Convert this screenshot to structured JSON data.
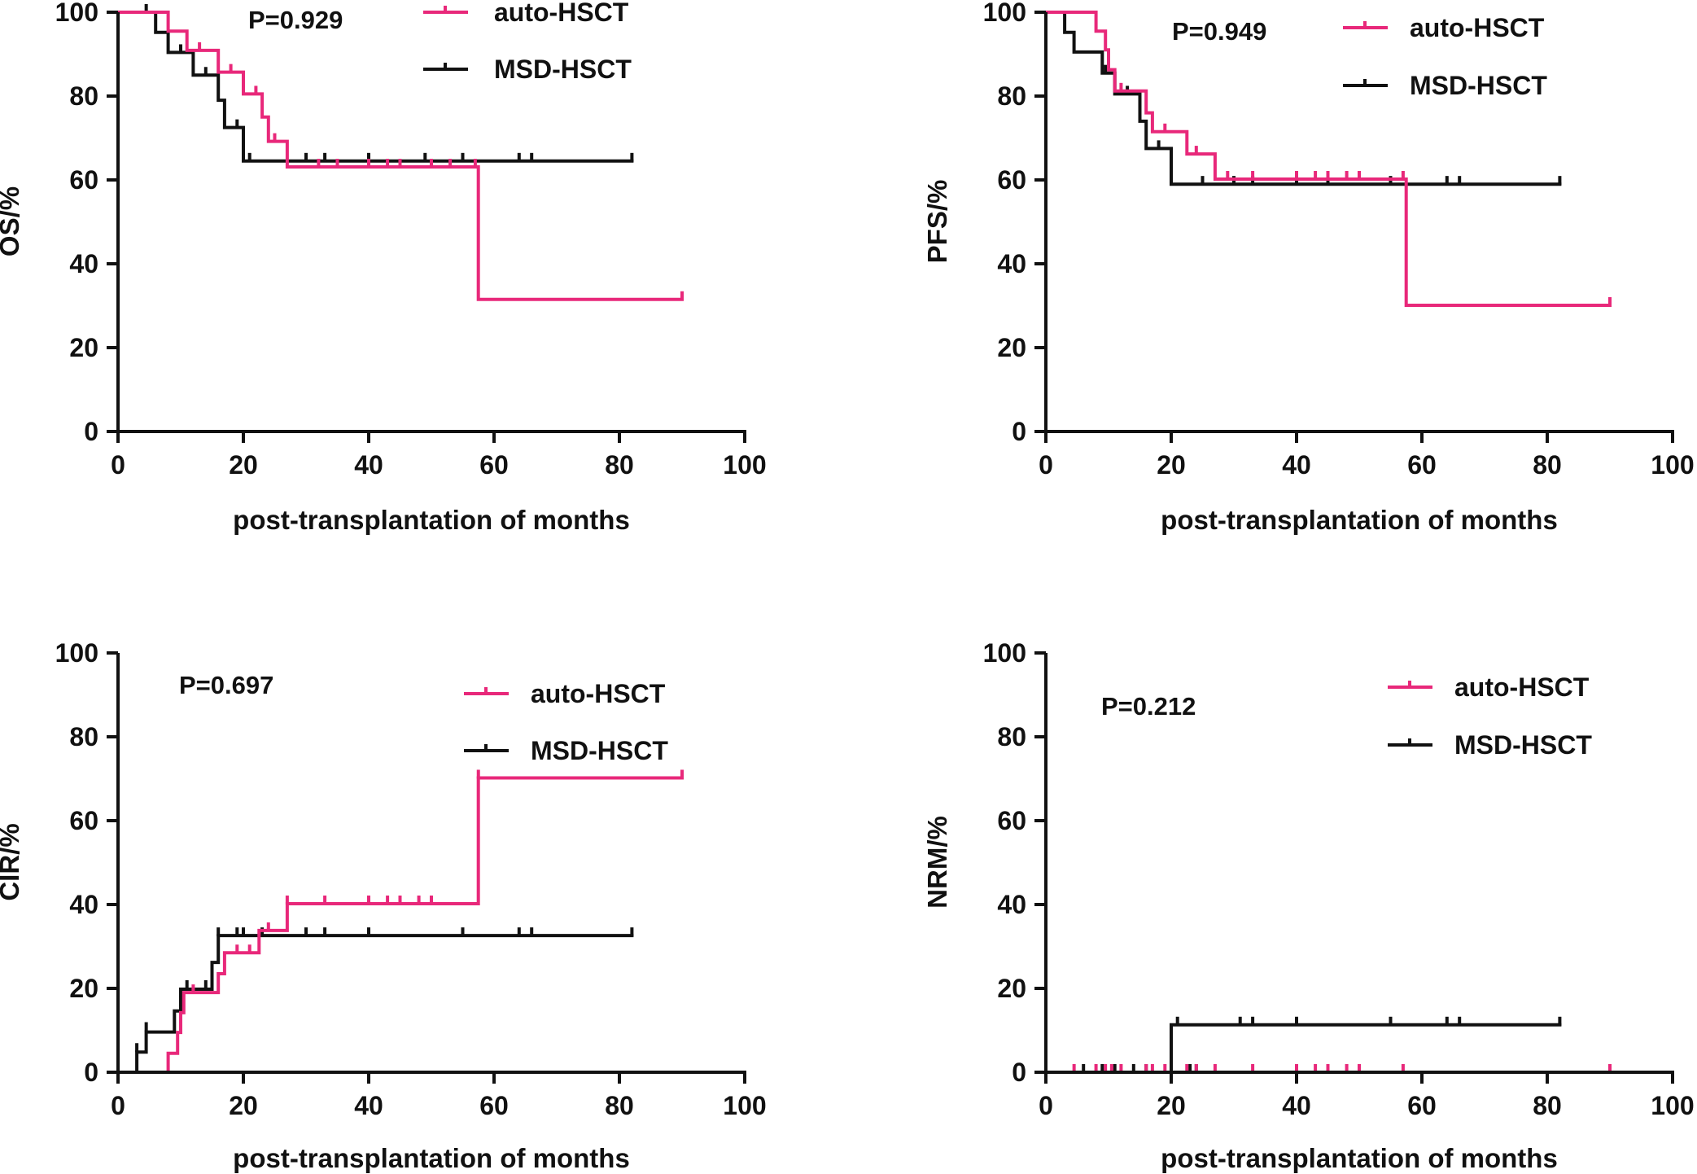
{
  "colors": {
    "auto": "#e8287a",
    "msd": "#111111",
    "axis": "#111111"
  },
  "chart_data": [
    {
      "type": "line",
      "subtype": "kaplan-meier",
      "id": "os",
      "ylabel": "OS/%",
      "xlabel": "post-transplantation of months",
      "p_value": "P=0.929",
      "xlim": [
        0,
        100
      ],
      "ylim": [
        0,
        100
      ],
      "x_ticks": [
        "0",
        "20",
        "40",
        "60",
        "80",
        "100"
      ],
      "y_ticks": [
        "0",
        "20",
        "40",
        "60",
        "80",
        "100"
      ],
      "legend": [
        "auto-HSCT",
        "MSD-HSCT"
      ],
      "series": [
        {
          "name": "auto-HSCT",
          "steps": [
            [
              0,
              100
            ],
            [
              8,
              100
            ],
            [
              8,
              95.5
            ],
            [
              11,
              95.5
            ],
            [
              11,
              90.9
            ],
            [
              16,
              90.9
            ],
            [
              16,
              85.7
            ],
            [
              20,
              85.7
            ],
            [
              20,
              80.5
            ],
            [
              23,
              80.5
            ],
            [
              23,
              75
            ],
            [
              24,
              75
            ],
            [
              24,
              69.2
            ],
            [
              27,
              69.2
            ],
            [
              27,
              63.1
            ],
            [
              57.5,
              63.1
            ],
            [
              57.5,
              31.5
            ],
            [
              90,
              31.5
            ]
          ],
          "censored": [
            [
              13,
              90.9
            ],
            [
              18,
              85.7
            ],
            [
              22,
              80.5
            ],
            [
              25,
              69.2
            ],
            [
              32,
              63.1
            ],
            [
              35,
              63.1
            ],
            [
              40,
              63.1
            ],
            [
              43,
              63.1
            ],
            [
              45,
              63.1
            ],
            [
              50,
              63.1
            ],
            [
              53,
              63.1
            ],
            [
              57,
              63.1
            ],
            [
              90,
              31.5
            ]
          ]
        },
        {
          "name": "MSD-HSCT",
          "steps": [
            [
              0,
              100
            ],
            [
              6,
              100
            ],
            [
              6,
              95.2
            ],
            [
              8,
              95.2
            ],
            [
              8,
              90.4
            ],
            [
              12,
              90.4
            ],
            [
              12,
              85
            ],
            [
              16,
              85
            ],
            [
              16,
              79
            ],
            [
              17,
              79
            ],
            [
              17,
              72.5
            ],
            [
              20,
              72.5
            ],
            [
              20,
              64.5
            ],
            [
              82,
              64.5
            ]
          ],
          "censored": [
            [
              4.5,
              100
            ],
            [
              10,
              90.4
            ],
            [
              14,
              85
            ],
            [
              19,
              72.5
            ],
            [
              21,
              64.5
            ],
            [
              30,
              64.5
            ],
            [
              33,
              64.5
            ],
            [
              40,
              64.5
            ],
            [
              49,
              64.5
            ],
            [
              55,
              64.5
            ],
            [
              64,
              64.5
            ],
            [
              66,
              64.5
            ],
            [
              82,
              64.5
            ]
          ]
        }
      ]
    },
    {
      "type": "line",
      "subtype": "kaplan-meier",
      "id": "pfs",
      "ylabel": "PFS/%",
      "xlabel": "post-transplantation of months",
      "p_value": "P=0.949",
      "xlim": [
        0,
        100
      ],
      "ylim": [
        0,
        100
      ],
      "x_ticks": [
        "0",
        "20",
        "40",
        "60",
        "80",
        "100"
      ],
      "y_ticks": [
        "0",
        "20",
        "40",
        "60",
        "80",
        "100"
      ],
      "legend": [
        "auto-HSCT",
        "MSD-HSCT"
      ],
      "series": [
        {
          "name": "auto-HSCT",
          "steps": [
            [
              0,
              100
            ],
            [
              8,
              100
            ],
            [
              8,
              95.5
            ],
            [
              9.5,
              95.5
            ],
            [
              9.5,
              91
            ],
            [
              10,
              91
            ],
            [
              10,
              86.3
            ],
            [
              11,
              86.3
            ],
            [
              11,
              81.2
            ],
            [
              16,
              81.2
            ],
            [
              16,
              76
            ],
            [
              17,
              76
            ],
            [
              17,
              71.5
            ],
            [
              22.5,
              71.5
            ],
            [
              22.5,
              66.2
            ],
            [
              27,
              66.2
            ],
            [
              27,
              60.2
            ],
            [
              57.5,
              60.2
            ],
            [
              57.5,
              30.1
            ],
            [
              90,
              30.1
            ]
          ],
          "censored": [
            [
              12,
              81.2
            ],
            [
              19,
              71.5
            ],
            [
              24,
              66.2
            ],
            [
              29,
              60.2
            ],
            [
              33,
              60.2
            ],
            [
              40,
              60.2
            ],
            [
              43,
              60.2
            ],
            [
              45,
              60.2
            ],
            [
              48,
              60.2
            ],
            [
              50,
              60.2
            ],
            [
              57,
              60.2
            ],
            [
              90,
              30.1
            ]
          ]
        },
        {
          "name": "MSD-HSCT",
          "steps": [
            [
              0,
              100
            ],
            [
              3,
              100
            ],
            [
              3,
              95.2
            ],
            [
              4.5,
              95.2
            ],
            [
              4.5,
              90.5
            ],
            [
              9,
              90.5
            ],
            [
              9,
              85.5
            ],
            [
              11,
              85.5
            ],
            [
              11,
              80.5
            ],
            [
              15,
              80.5
            ],
            [
              15,
              74
            ],
            [
              16,
              74
            ],
            [
              16,
              67.5
            ],
            [
              20,
              67.5
            ],
            [
              20,
              59
            ],
            [
              82,
              59
            ]
          ],
          "censored": [
            [
              9.5,
              85.5
            ],
            [
              13,
              80.5
            ],
            [
              18,
              67.5
            ],
            [
              25,
              59
            ],
            [
              30,
              59
            ],
            [
              33,
              59
            ],
            [
              40,
              59
            ],
            [
              45,
              59
            ],
            [
              55,
              59
            ],
            [
              64,
              59
            ],
            [
              66,
              59
            ],
            [
              82,
              59
            ]
          ]
        }
      ]
    },
    {
      "type": "line",
      "subtype": "cumulative-incidence",
      "id": "cir",
      "ylabel": "CIR/%",
      "xlabel": "post-transplantation of months",
      "p_value": "P=0.697",
      "xlim": [
        0,
        100
      ],
      "ylim": [
        0,
        100
      ],
      "x_ticks": [
        "0",
        "20",
        "40",
        "60",
        "80",
        "100"
      ],
      "y_ticks": [
        "0",
        "20",
        "40",
        "60",
        "80",
        "100"
      ],
      "legend": [
        "auto-HSCT",
        "MSD-HSCT"
      ],
      "series": [
        {
          "name": "auto-HSCT",
          "steps": [
            [
              0,
              0
            ],
            [
              8,
              0
            ],
            [
              8,
              4.5
            ],
            [
              9.5,
              4.5
            ],
            [
              9.5,
              9.5
            ],
            [
              10,
              9.5
            ],
            [
              10,
              14.2
            ],
            [
              10.5,
              14.2
            ],
            [
              10.5,
              19
            ],
            [
              16,
              19
            ],
            [
              16,
              23.5
            ],
            [
              17,
              23.5
            ],
            [
              17,
              28.5
            ],
            [
              22.5,
              28.5
            ],
            [
              22.5,
              33.8
            ],
            [
              27,
              33.8
            ],
            [
              27,
              40.2
            ],
            [
              57.5,
              40.2
            ],
            [
              57.5,
              70.2
            ],
            [
              90,
              70.2
            ]
          ],
          "censored": [
            [
              12,
              19
            ],
            [
              19,
              28.5
            ],
            [
              21,
              28.5
            ],
            [
              24,
              33.8
            ],
            [
              27,
              40.2
            ],
            [
              33,
              40.2
            ],
            [
              40,
              40.2
            ],
            [
              43,
              40.2
            ],
            [
              45,
              40.2
            ],
            [
              48,
              40.2
            ],
            [
              50,
              40.2
            ],
            [
              57.5,
              70.2
            ],
            [
              90,
              70.2
            ]
          ]
        },
        {
          "name": "MSD-HSCT",
          "steps": [
            [
              0,
              0
            ],
            [
              3,
              0
            ],
            [
              3,
              4.8
            ],
            [
              4.5,
              4.8
            ],
            [
              4.5,
              9.6
            ],
            [
              9,
              9.6
            ],
            [
              9,
              14.6
            ],
            [
              10,
              14.6
            ],
            [
              10,
              19.8
            ],
            [
              15,
              19.8
            ],
            [
              15,
              26.2
            ],
            [
              16,
              26.2
            ],
            [
              16,
              32.6
            ],
            [
              82,
              32.6
            ]
          ],
          "censored": [
            [
              3,
              5
            ],
            [
              4.5,
              10
            ],
            [
              10,
              16
            ],
            [
              11,
              20
            ],
            [
              14,
              20
            ],
            [
              16,
              32.6
            ],
            [
              19,
              32.6
            ],
            [
              20,
              32.6
            ],
            [
              23,
              32.6
            ],
            [
              30,
              32.6
            ],
            [
              33,
              32.6
            ],
            [
              40,
              32.6
            ],
            [
              55,
              32.6
            ],
            [
              64,
              32.6
            ],
            [
              66,
              32.6
            ],
            [
              82,
              32.6
            ]
          ]
        }
      ]
    },
    {
      "type": "line",
      "subtype": "cumulative-incidence",
      "id": "nrm",
      "ylabel": "NRM/%",
      "xlabel": "post-transplantation of months",
      "p_value": "P=0.212",
      "xlim": [
        0,
        100
      ],
      "ylim": [
        0,
        100
      ],
      "x_ticks": [
        "0",
        "20",
        "40",
        "60",
        "80",
        "100"
      ],
      "y_ticks": [
        "0",
        "20",
        "40",
        "60",
        "80",
        "100"
      ],
      "legend": [
        "auto-HSCT",
        "MSD-HSCT"
      ],
      "series": [
        {
          "name": "auto-HSCT",
          "steps": [
            [
              0,
              0
            ],
            [
              90,
              0
            ]
          ],
          "censored": [
            [
              4.5,
              0
            ],
            [
              8,
              0
            ],
            [
              9.5,
              0
            ],
            [
              10.5,
              0
            ],
            [
              12,
              0
            ],
            [
              16,
              0
            ],
            [
              17,
              0
            ],
            [
              19,
              0
            ],
            [
              22.5,
              0
            ],
            [
              24,
              0
            ],
            [
              27,
              0
            ],
            [
              33,
              0
            ],
            [
              40,
              0
            ],
            [
              43,
              0
            ],
            [
              45,
              0
            ],
            [
              48,
              0
            ],
            [
              50,
              0
            ],
            [
              57,
              0
            ],
            [
              90,
              0
            ]
          ]
        },
        {
          "name": "MSD-HSCT",
          "steps": [
            [
              0,
              0
            ],
            [
              20,
              0
            ],
            [
              20,
              11.3
            ],
            [
              82,
              11.3
            ]
          ],
          "censored": [
            [
              6,
              0
            ],
            [
              9,
              0
            ],
            [
              11,
              0
            ],
            [
              14,
              0
            ],
            [
              16,
              0
            ],
            [
              21,
              11.3
            ],
            [
              23,
              0
            ],
            [
              24,
              0
            ],
            [
              31,
              11.3
            ],
            [
              33,
              11.3
            ],
            [
              40,
              11.3
            ],
            [
              55,
              11.3
            ],
            [
              64,
              11.3
            ],
            [
              66,
              11.3
            ],
            [
              82,
              11.3
            ]
          ]
        }
      ]
    }
  ]
}
